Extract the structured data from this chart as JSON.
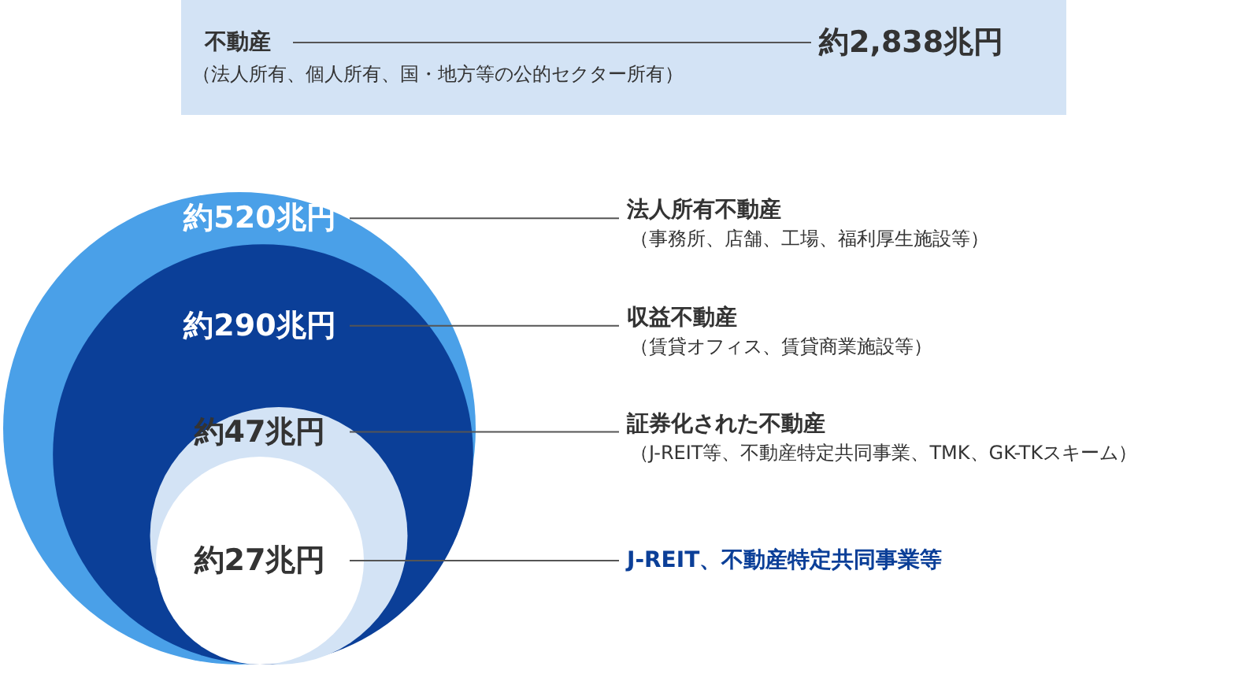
{
  "chart_data": {
    "type": "other",
    "title": "不動産",
    "subtitle": "（法人所有、個人所有、国・地方等の公的セクター所有）",
    "annotations": [
      "約2,838兆円",
      "（事務所、店舗、工場、福利厚生施設等）",
      "（賃貸オフィス、賃貸商業施設等）",
      "（J-REIT等、不動産特定共同事業、TMK、GK-TKスキーム）"
    ],
    "categories": [
      "法人所有不動産",
      "収益不動産",
      "証券化された不動産",
      "J-REIT、不動産特定共同事業等"
    ],
    "values": [
      520,
      290,
      47,
      27
    ],
    "value_labels": [
      "約520兆円",
      "約290兆円",
      "約47兆円",
      "約27兆円"
    ],
    "colors": [
      "#4aa0e8",
      "#0b3f98",
      "#d3e3f5",
      "#ffffff"
    ]
  }
}
